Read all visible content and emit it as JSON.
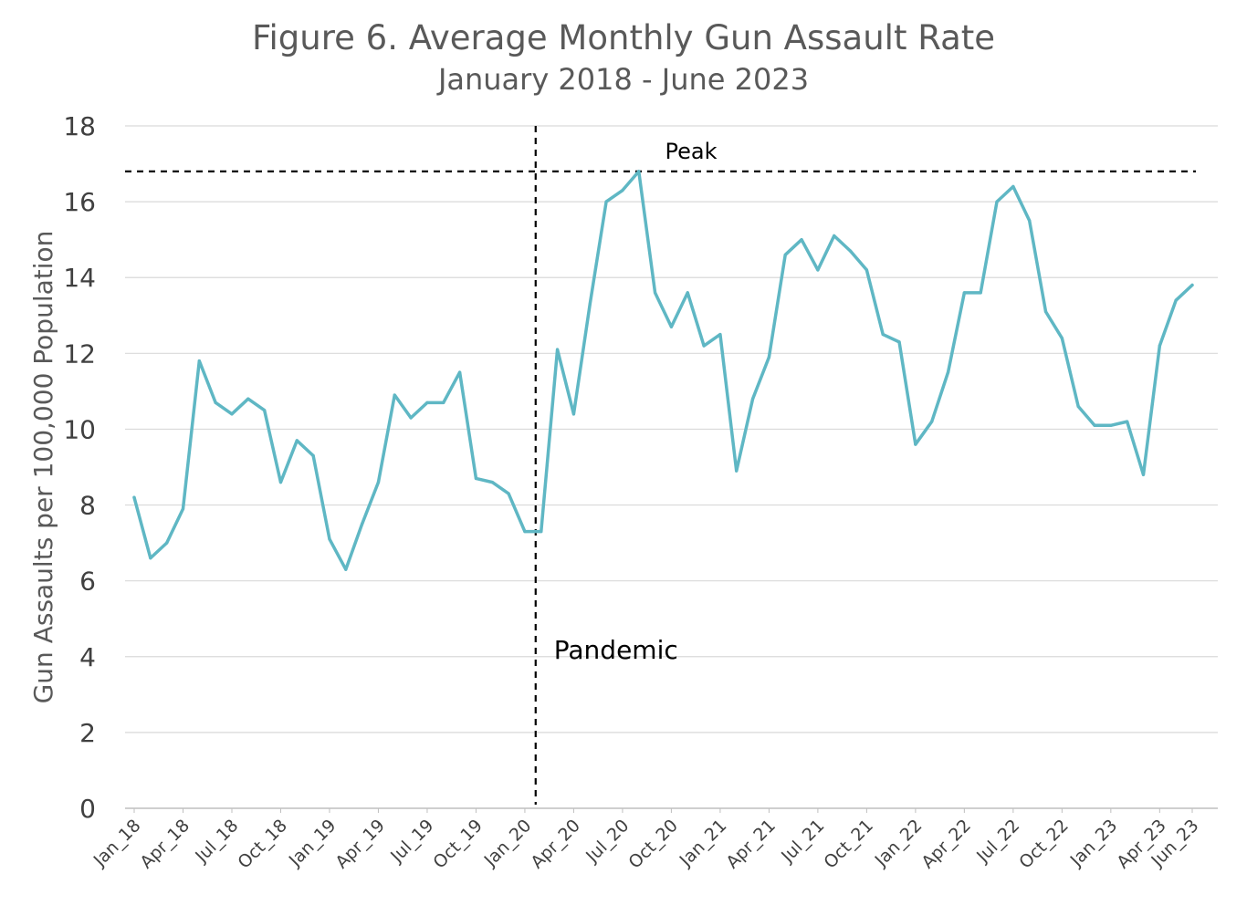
{
  "chart_data": {
    "type": "line",
    "title": "Figure 6. Average Monthly Gun Assault Rate",
    "subtitle": "January 2018 - June 2023",
    "xlabel": "",
    "ylabel": "Gun Assaults per 100,000 Population",
    "ylim": [
      0,
      18
    ],
    "yticks": [
      0,
      2,
      4,
      6,
      8,
      10,
      12,
      14,
      16,
      18
    ],
    "grid": true,
    "legend": "none",
    "line_color": "#5fb7c4",
    "x": [
      "Jan_18",
      "Feb_18",
      "Mar_18",
      "Apr_18",
      "May_18",
      "Jun_18",
      "Jul_18",
      "Aug_18",
      "Sep_18",
      "Oct_18",
      "Nov_18",
      "Dec_18",
      "Jan_19",
      "Feb_19",
      "Mar_19",
      "Apr_19",
      "May_19",
      "Jun_19",
      "Jul_19",
      "Aug_19",
      "Sep_19",
      "Oct_19",
      "Nov_19",
      "Dec_19",
      "Jan_20",
      "Feb_20",
      "Mar_20",
      "Apr_20",
      "May_20",
      "Jun_20",
      "Jul_20",
      "Aug_20",
      "Sep_20",
      "Oct_20",
      "Nov_20",
      "Dec_20",
      "Jan_21",
      "Feb_21",
      "Mar_21",
      "Apr_21",
      "May_21",
      "Jun_21",
      "Jul_21",
      "Aug_21",
      "Sep_21",
      "Oct_21",
      "Nov_21",
      "Dec_21",
      "Jan_22",
      "Feb_22",
      "Mar_22",
      "Apr_22",
      "May_22",
      "Jun_22",
      "Jul_22",
      "Aug_22",
      "Sep_22",
      "Oct_22",
      "Nov_22",
      "Dec_22",
      "Jan_23",
      "Feb_23",
      "Mar_23",
      "Apr_23",
      "May_23",
      "Jun_23"
    ],
    "tick_labels": [
      "Jan_18",
      "Apr_18",
      "Jul_18",
      "Oct_18",
      "Jan_19",
      "Apr_19",
      "Jul_19",
      "Oct_19",
      "Jan_20",
      "Apr_20",
      "Jul_20",
      "Oct_20",
      "Jan_21",
      "Apr_21",
      "Jul_21",
      "Oct_21",
      "Jan_22",
      "Apr_22",
      "Jul_22",
      "Oct_22",
      "Jan_23",
      "Apr_23",
      "Jun_23"
    ],
    "series": [
      {
        "values": [
          8.2,
          6.6,
          7.0,
          7.9,
          11.8,
          10.7,
          10.4,
          10.8,
          10.5,
          8.6,
          9.7,
          9.3,
          7.1,
          6.3,
          7.5,
          8.6,
          10.9,
          10.3,
          10.7,
          10.7,
          11.5,
          8.7,
          8.6,
          8.3,
          7.3,
          7.3,
          12.1,
          10.4,
          13.3,
          16.0,
          16.3,
          16.8,
          13.6,
          12.7,
          13.6,
          12.2,
          12.5,
          8.9,
          10.8,
          11.9,
          14.6,
          15.0,
          14.2,
          15.1,
          14.7,
          14.2,
          12.5,
          12.3,
          9.6,
          10.2,
          11.5,
          13.6,
          13.6,
          16.0,
          16.4,
          15.5,
          13.1,
          12.4,
          10.6,
          10.1,
          10.1,
          10.2,
          8.8,
          12.2,
          13.4,
          13.8
        ]
      }
    ],
    "annotations": {
      "peak_label": "Peak",
      "peak_value": 16.8,
      "pandemic_label": "Pandemic",
      "pandemic_x": "Feb_20"
    }
  }
}
